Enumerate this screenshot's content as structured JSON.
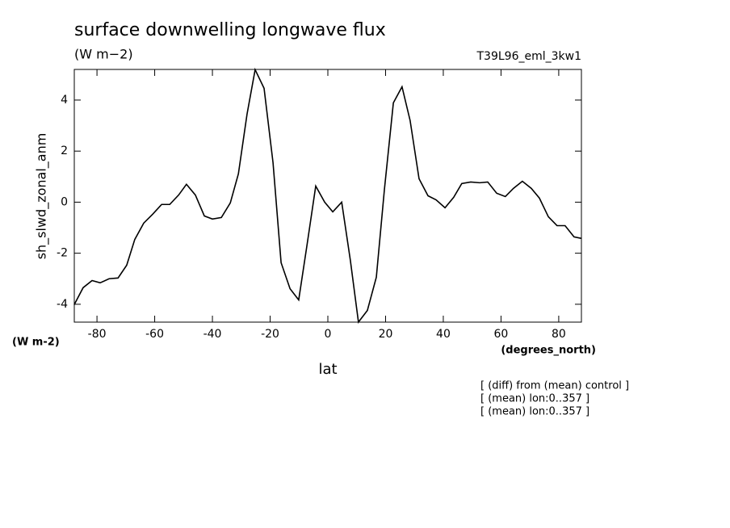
{
  "chart_data": {
    "type": "line",
    "title": "surface downwelling longwave flux",
    "subtitle": "(W m−2)",
    "dataset": "T39L96_eml_3kw1",
    "y_label": "sh_slwd_zonal_anm",
    "y_units": "(W m-2)",
    "x_label": "lat",
    "x_units": "(degrees_north)",
    "notes": [
      "[ (diff) from (mean) control ]",
      "[ (mean) lon:0..357 ]",
      "[ (mean) lon:0..357 ]"
    ],
    "x": [
      -87.9,
      -84.8,
      -81.7,
      -78.9,
      -75.8,
      -72.7,
      -69.7,
      -66.9,
      -63.8,
      -60.7,
      -57.6,
      -54.8,
      -51.7,
      -49.0,
      -45.9,
      -42.8,
      -40.0,
      -36.9,
      -33.8,
      -31.0,
      -28.0,
      -25.2,
      -22.1,
      -19.0,
      -16.2,
      -13.1,
      -10.1,
      -7.3,
      -4.2,
      -1.1,
      1.7,
      4.8,
      7.8,
      10.6,
      13.7,
      16.8,
      19.6,
      22.7,
      25.7,
      28.5,
      31.6,
      34.7,
      37.5,
      40.6,
      43.6,
      46.4,
      49.5,
      52.6,
      55.4,
      58.5,
      61.5,
      64.3,
      67.4,
      70.5,
      73.3,
      76.4,
      79.4,
      82.2,
      85.3,
      87.9
    ],
    "series": [
      {
        "color": "#000000",
        "values": [
          -4.02,
          -3.35,
          -3.07,
          -3.16,
          -3.0,
          -2.97,
          -2.47,
          -1.46,
          -0.82,
          -0.47,
          -0.09,
          -0.09,
          0.28,
          0.7,
          0.28,
          -0.54,
          -0.66,
          -0.6,
          -0.03,
          1.11,
          3.45,
          5.19,
          4.46,
          1.55,
          -2.37,
          -3.39,
          -3.83,
          -1.74,
          0.63,
          0.0,
          -0.38,
          0.0,
          -2.28,
          -4.7,
          -4.24,
          -2.94,
          0.5,
          3.89,
          4.52,
          3.2,
          0.92,
          0.25,
          0.09,
          -0.22,
          0.19,
          0.73,
          0.79,
          0.76,
          0.79,
          0.35,
          0.22,
          0.54,
          0.82,
          0.54,
          0.16,
          -0.57,
          -0.92,
          -0.92,
          -1.36,
          -1.42
        ]
      }
    ],
    "xlim": [
      -87.86,
      87.86
    ],
    "ylim": [
      -4.7,
      5.2
    ],
    "xticks": [
      -80,
      -60,
      -40,
      -20,
      0,
      20,
      40,
      60,
      80
    ],
    "yticks": [
      -4,
      -2,
      0,
      2,
      4
    ]
  }
}
